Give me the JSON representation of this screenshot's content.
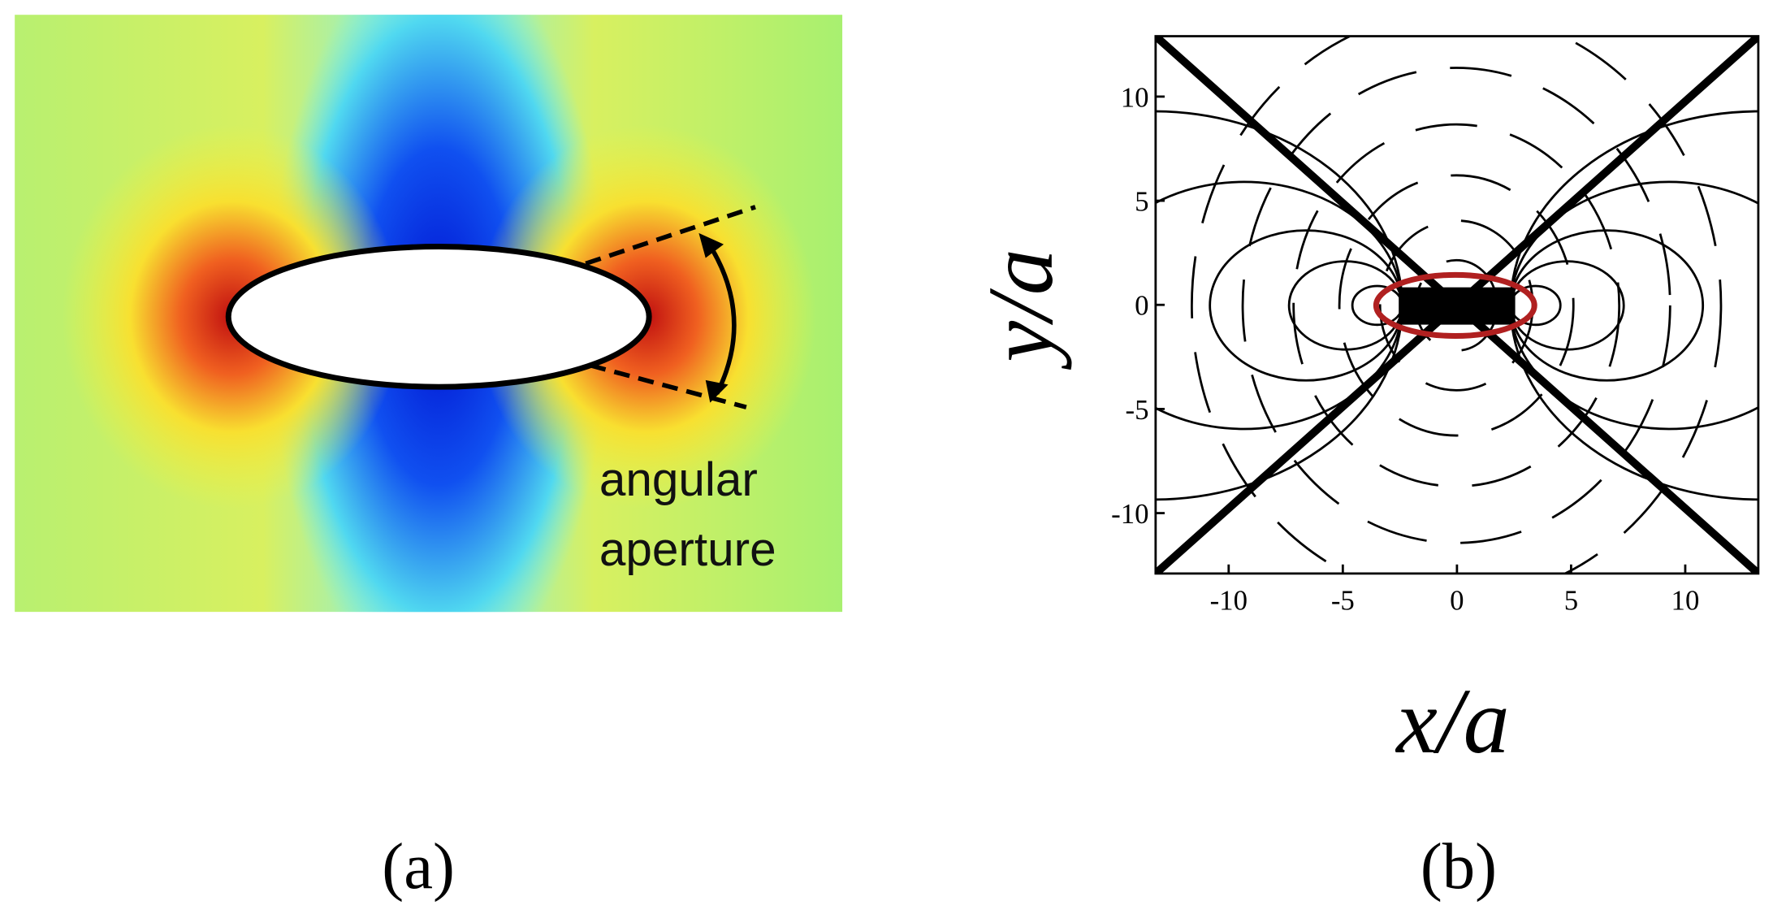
{
  "panel_a": {
    "caption": "(a)",
    "annotation": [
      "angular",
      "aperture"
    ]
  },
  "panel_b": {
    "caption": "(b)",
    "xlabel": "x/a",
    "ylabel": "y/a",
    "xlim": [
      -13.2,
      13.2
    ],
    "ylim": [
      -12.9,
      12.9
    ],
    "xticks": [
      -10,
      -5,
      0,
      5,
      10
    ],
    "yticks": [
      10,
      5,
      0,
      -5,
      -10
    ]
  }
}
